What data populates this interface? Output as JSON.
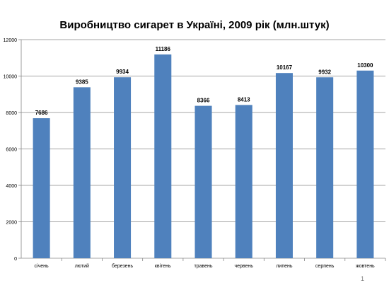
{
  "chart_data": {
    "type": "bar",
    "title": "Виробництво сигарет в Україні, 2009 рік (млн.штук)",
    "categories": [
      "січень",
      "лютий",
      "березень",
      "квітень",
      "травень",
      "червень",
      "липень",
      "серпень",
      "жовтень"
    ],
    "values": [
      7686,
      9385,
      9934,
      11186,
      8366,
      8413,
      10167,
      9932,
      10300
    ],
    "data_labels": [
      "7686",
      "9385",
      "9934",
      "11186",
      "8366",
      "8413",
      "10167",
      "9932",
      "10300"
    ],
    "y_ticks": [
      "0",
      "2000",
      "4000",
      "6000",
      "8000",
      "10000",
      "12000"
    ],
    "ylim": [
      0,
      12000
    ],
    "xlabel": "",
    "ylabel": "",
    "grid": true,
    "legend": "none",
    "bar_color": "#4f81bd"
  },
  "page_number": "1"
}
